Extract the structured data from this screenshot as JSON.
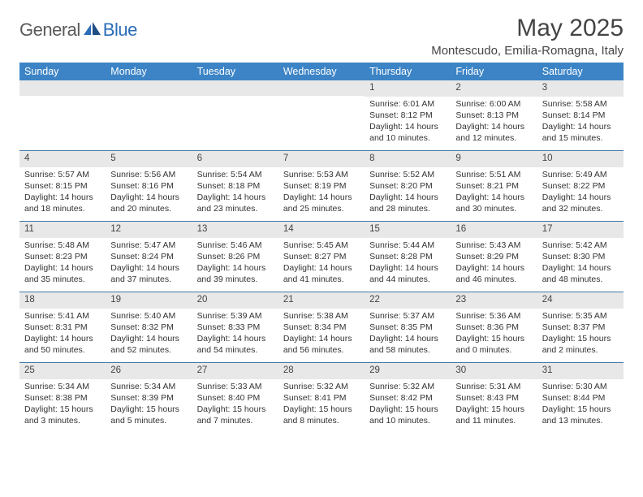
{
  "logo": {
    "part1": "General",
    "part2": "Blue"
  },
  "title": "May 2025",
  "location": "Montescudo, Emilia-Romagna, Italy",
  "colors": {
    "header_bar": "#3c84c6",
    "header_text": "#ffffff",
    "daynum_bg": "#e8e8e8",
    "rule": "#4178a8",
    "body_text": "#333333",
    "logo_gray": "#5a5a5a",
    "logo_blue": "#2a6db8"
  },
  "weekdays": [
    "Sunday",
    "Monday",
    "Tuesday",
    "Wednesday",
    "Thursday",
    "Friday",
    "Saturday"
  ],
  "weeks": [
    [
      {
        "n": "",
        "sunrise": "",
        "sunset": "",
        "daylight": ""
      },
      {
        "n": "",
        "sunrise": "",
        "sunset": "",
        "daylight": ""
      },
      {
        "n": "",
        "sunrise": "",
        "sunset": "",
        "daylight": ""
      },
      {
        "n": "",
        "sunrise": "",
        "sunset": "",
        "daylight": ""
      },
      {
        "n": "1",
        "sunrise": "Sunrise: 6:01 AM",
        "sunset": "Sunset: 8:12 PM",
        "daylight": "Daylight: 14 hours and 10 minutes."
      },
      {
        "n": "2",
        "sunrise": "Sunrise: 6:00 AM",
        "sunset": "Sunset: 8:13 PM",
        "daylight": "Daylight: 14 hours and 12 minutes."
      },
      {
        "n": "3",
        "sunrise": "Sunrise: 5:58 AM",
        "sunset": "Sunset: 8:14 PM",
        "daylight": "Daylight: 14 hours and 15 minutes."
      }
    ],
    [
      {
        "n": "4",
        "sunrise": "Sunrise: 5:57 AM",
        "sunset": "Sunset: 8:15 PM",
        "daylight": "Daylight: 14 hours and 18 minutes."
      },
      {
        "n": "5",
        "sunrise": "Sunrise: 5:56 AM",
        "sunset": "Sunset: 8:16 PM",
        "daylight": "Daylight: 14 hours and 20 minutes."
      },
      {
        "n": "6",
        "sunrise": "Sunrise: 5:54 AM",
        "sunset": "Sunset: 8:18 PM",
        "daylight": "Daylight: 14 hours and 23 minutes."
      },
      {
        "n": "7",
        "sunrise": "Sunrise: 5:53 AM",
        "sunset": "Sunset: 8:19 PM",
        "daylight": "Daylight: 14 hours and 25 minutes."
      },
      {
        "n": "8",
        "sunrise": "Sunrise: 5:52 AM",
        "sunset": "Sunset: 8:20 PM",
        "daylight": "Daylight: 14 hours and 28 minutes."
      },
      {
        "n": "9",
        "sunrise": "Sunrise: 5:51 AM",
        "sunset": "Sunset: 8:21 PM",
        "daylight": "Daylight: 14 hours and 30 minutes."
      },
      {
        "n": "10",
        "sunrise": "Sunrise: 5:49 AM",
        "sunset": "Sunset: 8:22 PM",
        "daylight": "Daylight: 14 hours and 32 minutes."
      }
    ],
    [
      {
        "n": "11",
        "sunrise": "Sunrise: 5:48 AM",
        "sunset": "Sunset: 8:23 PM",
        "daylight": "Daylight: 14 hours and 35 minutes."
      },
      {
        "n": "12",
        "sunrise": "Sunrise: 5:47 AM",
        "sunset": "Sunset: 8:24 PM",
        "daylight": "Daylight: 14 hours and 37 minutes."
      },
      {
        "n": "13",
        "sunrise": "Sunrise: 5:46 AM",
        "sunset": "Sunset: 8:26 PM",
        "daylight": "Daylight: 14 hours and 39 minutes."
      },
      {
        "n": "14",
        "sunrise": "Sunrise: 5:45 AM",
        "sunset": "Sunset: 8:27 PM",
        "daylight": "Daylight: 14 hours and 41 minutes."
      },
      {
        "n": "15",
        "sunrise": "Sunrise: 5:44 AM",
        "sunset": "Sunset: 8:28 PM",
        "daylight": "Daylight: 14 hours and 44 minutes."
      },
      {
        "n": "16",
        "sunrise": "Sunrise: 5:43 AM",
        "sunset": "Sunset: 8:29 PM",
        "daylight": "Daylight: 14 hours and 46 minutes."
      },
      {
        "n": "17",
        "sunrise": "Sunrise: 5:42 AM",
        "sunset": "Sunset: 8:30 PM",
        "daylight": "Daylight: 14 hours and 48 minutes."
      }
    ],
    [
      {
        "n": "18",
        "sunrise": "Sunrise: 5:41 AM",
        "sunset": "Sunset: 8:31 PM",
        "daylight": "Daylight: 14 hours and 50 minutes."
      },
      {
        "n": "19",
        "sunrise": "Sunrise: 5:40 AM",
        "sunset": "Sunset: 8:32 PM",
        "daylight": "Daylight: 14 hours and 52 minutes."
      },
      {
        "n": "20",
        "sunrise": "Sunrise: 5:39 AM",
        "sunset": "Sunset: 8:33 PM",
        "daylight": "Daylight: 14 hours and 54 minutes."
      },
      {
        "n": "21",
        "sunrise": "Sunrise: 5:38 AM",
        "sunset": "Sunset: 8:34 PM",
        "daylight": "Daylight: 14 hours and 56 minutes."
      },
      {
        "n": "22",
        "sunrise": "Sunrise: 5:37 AM",
        "sunset": "Sunset: 8:35 PM",
        "daylight": "Daylight: 14 hours and 58 minutes."
      },
      {
        "n": "23",
        "sunrise": "Sunrise: 5:36 AM",
        "sunset": "Sunset: 8:36 PM",
        "daylight": "Daylight: 15 hours and 0 minutes."
      },
      {
        "n": "24",
        "sunrise": "Sunrise: 5:35 AM",
        "sunset": "Sunset: 8:37 PM",
        "daylight": "Daylight: 15 hours and 2 minutes."
      }
    ],
    [
      {
        "n": "25",
        "sunrise": "Sunrise: 5:34 AM",
        "sunset": "Sunset: 8:38 PM",
        "daylight": "Daylight: 15 hours and 3 minutes."
      },
      {
        "n": "26",
        "sunrise": "Sunrise: 5:34 AM",
        "sunset": "Sunset: 8:39 PM",
        "daylight": "Daylight: 15 hours and 5 minutes."
      },
      {
        "n": "27",
        "sunrise": "Sunrise: 5:33 AM",
        "sunset": "Sunset: 8:40 PM",
        "daylight": "Daylight: 15 hours and 7 minutes."
      },
      {
        "n": "28",
        "sunrise": "Sunrise: 5:32 AM",
        "sunset": "Sunset: 8:41 PM",
        "daylight": "Daylight: 15 hours and 8 minutes."
      },
      {
        "n": "29",
        "sunrise": "Sunrise: 5:32 AM",
        "sunset": "Sunset: 8:42 PM",
        "daylight": "Daylight: 15 hours and 10 minutes."
      },
      {
        "n": "30",
        "sunrise": "Sunrise: 5:31 AM",
        "sunset": "Sunset: 8:43 PM",
        "daylight": "Daylight: 15 hours and 11 minutes."
      },
      {
        "n": "31",
        "sunrise": "Sunrise: 5:30 AM",
        "sunset": "Sunset: 8:44 PM",
        "daylight": "Daylight: 15 hours and 13 minutes."
      }
    ]
  ]
}
